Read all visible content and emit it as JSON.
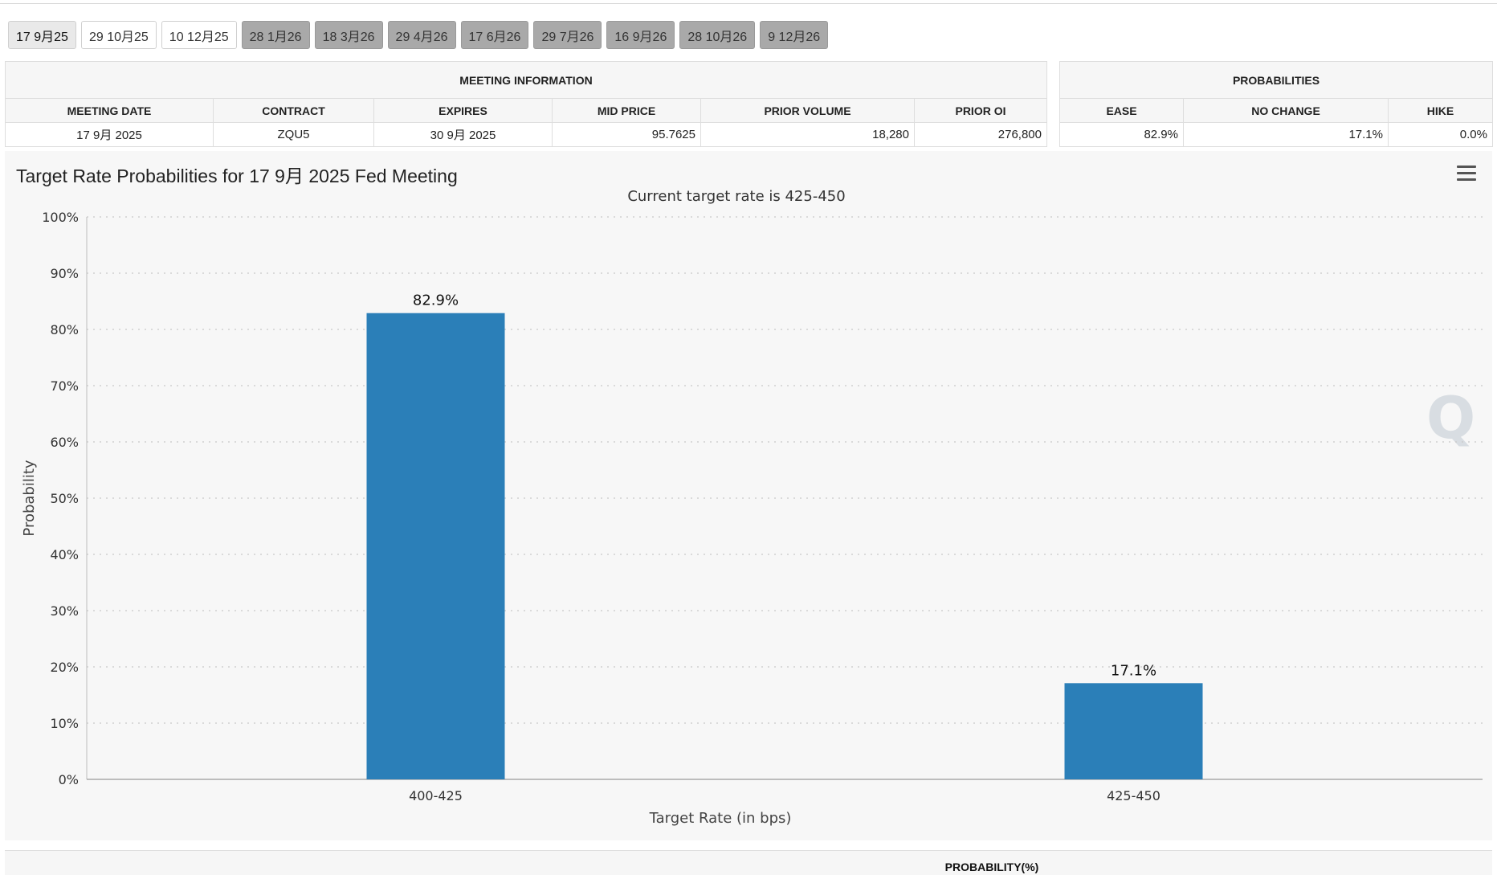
{
  "tabs": [
    {
      "label": "17 9月25",
      "state": "active"
    },
    {
      "label": "29 10月25",
      "state": "normal"
    },
    {
      "label": "10 12月25",
      "state": "normal"
    },
    {
      "label": "28 1月26",
      "state": "future"
    },
    {
      "label": "18 3月26",
      "state": "future"
    },
    {
      "label": "29 4月26",
      "state": "future"
    },
    {
      "label": "17 6月26",
      "state": "future"
    },
    {
      "label": "29 7月26",
      "state": "future"
    },
    {
      "label": "16 9月26",
      "state": "future"
    },
    {
      "label": "28 10月26",
      "state": "future"
    },
    {
      "label": "9 12月26",
      "state": "future"
    }
  ],
  "meeting_info": {
    "group_title": "MEETING INFORMATION",
    "headers": {
      "meeting_date": "MEETING DATE",
      "contract": "CONTRACT",
      "expires": "EXPIRES",
      "mid_price": "MID PRICE",
      "prior_volume": "PRIOR VOLUME",
      "prior_oi": "PRIOR OI"
    },
    "row": {
      "meeting_date": "17 9月 2025",
      "contract": "ZQU5",
      "expires": "30 9月 2025",
      "mid_price": "95.7625",
      "prior_volume": "18,280",
      "prior_oi": "276,800"
    }
  },
  "probabilities": {
    "group_title": "PROBABILITIES",
    "headers": {
      "ease": "EASE",
      "no_change": "NO CHANGE",
      "hike": "HIKE"
    },
    "row": {
      "ease": "82.9%",
      "no_change": "17.1%",
      "hike": "0.0%"
    }
  },
  "chart": {
    "title": "Target Rate Probabilities for 17 9月 2025 Fed Meeting"
  },
  "chart_data": {
    "type": "bar",
    "title": "Target Rate Probabilities for 17 9月 2025 Fed Meeting",
    "subtitle": "Current target rate is 425-450",
    "xlabel": "Target Rate (in bps)",
    "ylabel": "Probability",
    "categories": [
      "400-425",
      "425-450"
    ],
    "values": [
      82.9,
      17.1
    ],
    "data_labels": [
      "82.9%",
      "17.1%"
    ],
    "ylim": [
      0,
      100
    ],
    "yticks": [
      "0%",
      "10%",
      "20%",
      "30%",
      "40%",
      "50%",
      "60%",
      "70%",
      "80%",
      "90%",
      "100%"
    ],
    "grid": true,
    "bar_color": "#2b7fb8",
    "legend": "none"
  },
  "bottom_table": {
    "header": "PROBABILITY(%)"
  }
}
